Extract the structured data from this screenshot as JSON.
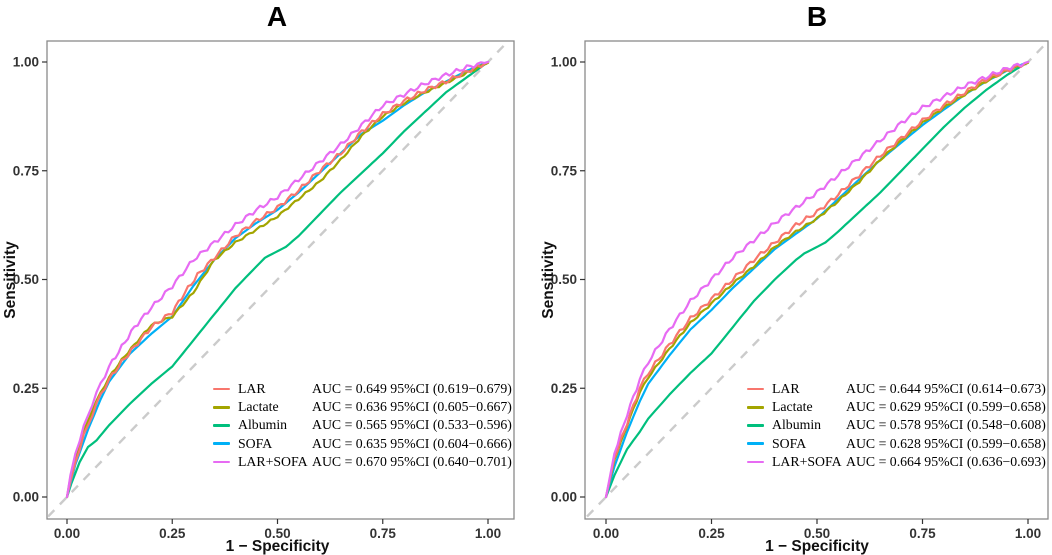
{
  "figure": {
    "background": "#ffffff"
  },
  "chart_data": [
    {
      "type": "line",
      "panel": "A",
      "title": "A",
      "xlabel": "1 − Specificity",
      "ylabel": "Sensitivity",
      "xlim": [
        0,
        1
      ],
      "ylim": [
        0,
        1
      ],
      "x_ticks": [
        "0.00",
        "0.25",
        "0.50",
        "0.75",
        "1.00"
      ],
      "y_ticks": [
        "0.00",
        "0.25",
        "0.50",
        "0.75",
        "1.00"
      ],
      "grid": false,
      "legend_position": "inside-bottom-right",
      "reference_line": {
        "type": "diagonal-chance-line",
        "style": "dashed",
        "color": "#cbcbcb"
      },
      "series": [
        {
          "name": "LAR",
          "color": "#F8766D",
          "auc_label": "AUC = 0.649 95%CI (0.619−0.679)",
          "points": [
            [
              0,
              0
            ],
            [
              0.008,
              0.035
            ],
            [
              0.02,
              0.08
            ],
            [
              0.04,
              0.14
            ],
            [
              0.06,
              0.19
            ],
            [
              0.08,
              0.235
            ],
            [
              0.1,
              0.27
            ],
            [
              0.13,
              0.31
            ],
            [
              0.16,
              0.345
            ],
            [
              0.2,
              0.39
            ],
            [
              0.25,
              0.425
            ],
            [
              0.28,
              0.47
            ],
            [
              0.31,
              0.51
            ],
            [
              0.35,
              0.55
            ],
            [
              0.4,
              0.6
            ],
            [
              0.45,
              0.635
            ],
            [
              0.5,
              0.665
            ],
            [
              0.55,
              0.705
            ],
            [
              0.6,
              0.75
            ],
            [
              0.65,
              0.79
            ],
            [
              0.7,
              0.84
            ],
            [
              0.75,
              0.88
            ],
            [
              0.8,
              0.91
            ],
            [
              0.85,
              0.935
            ],
            [
              0.9,
              0.955
            ],
            [
              0.95,
              0.978
            ],
            [
              1,
              1
            ]
          ]
        },
        {
          "name": "Lactate",
          "color": "#A3A500",
          "auc_label": "AUC = 0.636 95%CI (0.605−0.667)",
          "points": [
            [
              0,
              0
            ],
            [
              0.008,
              0.045
            ],
            [
              0.02,
              0.09
            ],
            [
              0.04,
              0.15
            ],
            [
              0.06,
              0.2
            ],
            [
              0.08,
              0.24
            ],
            [
              0.1,
              0.275
            ],
            [
              0.13,
              0.315
            ],
            [
              0.16,
              0.35
            ],
            [
              0.2,
              0.395
            ],
            [
              0.25,
              0.415
            ],
            [
              0.3,
              0.47
            ],
            [
              0.35,
              0.545
            ],
            [
              0.4,
              0.585
            ],
            [
              0.45,
              0.615
            ],
            [
              0.5,
              0.645
            ],
            [
              0.55,
              0.685
            ],
            [
              0.6,
              0.725
            ],
            [
              0.65,
              0.775
            ],
            [
              0.7,
              0.83
            ],
            [
              0.75,
              0.875
            ],
            [
              0.8,
              0.905
            ],
            [
              0.85,
              0.93
            ],
            [
              0.9,
              0.952
            ],
            [
              0.95,
              0.975
            ],
            [
              1,
              0.998
            ]
          ]
        },
        {
          "name": "Albumin",
          "color": "#00BF7D",
          "auc_label": "AUC = 0.565 95%CI (0.533−0.596)",
          "points": [
            [
              0,
              0
            ],
            [
              0.01,
              0.03
            ],
            [
              0.03,
              0.08
            ],
            [
              0.05,
              0.115
            ],
            [
              0.07,
              0.13
            ],
            [
              0.1,
              0.165
            ],
            [
              0.15,
              0.215
            ],
            [
              0.2,
              0.26
            ],
            [
              0.25,
              0.3
            ],
            [
              0.3,
              0.36
            ],
            [
              0.35,
              0.42
            ],
            [
              0.4,
              0.48
            ],
            [
              0.45,
              0.53
            ],
            [
              0.47,
              0.55
            ],
            [
              0.52,
              0.575
            ],
            [
              0.55,
              0.6
            ],
            [
              0.6,
              0.65
            ],
            [
              0.65,
              0.7
            ],
            [
              0.7,
              0.745
            ],
            [
              0.75,
              0.79
            ],
            [
              0.8,
              0.84
            ],
            [
              0.85,
              0.885
            ],
            [
              0.9,
              0.93
            ],
            [
              0.95,
              0.965
            ],
            [
              1,
              1
            ]
          ]
        },
        {
          "name": "SOFA",
          "color": "#00B0F6",
          "auc_label": "AUC = 0.635 95%CI (0.604−0.666)",
          "points": [
            [
              0,
              0
            ],
            [
              0.02,
              0.075
            ],
            [
              0.05,
              0.155
            ],
            [
              0.08,
              0.225
            ],
            [
              0.1,
              0.265
            ],
            [
              0.15,
              0.33
            ],
            [
              0.2,
              0.375
            ],
            [
              0.25,
              0.415
            ],
            [
              0.3,
              0.485
            ],
            [
              0.35,
              0.545
            ],
            [
              0.4,
              0.595
            ],
            [
              0.45,
              0.63
            ],
            [
              0.5,
              0.66
            ],
            [
              0.55,
              0.7
            ],
            [
              0.6,
              0.745
            ],
            [
              0.65,
              0.79
            ],
            [
              0.7,
              0.835
            ],
            [
              0.75,
              0.865
            ],
            [
              0.8,
              0.9
            ],
            [
              0.85,
              0.93
            ],
            [
              0.9,
              0.955
            ],
            [
              0.95,
              0.98
            ],
            [
              1,
              1
            ]
          ]
        },
        {
          "name": "LAR+SOFA",
          "color": "#E76BF3",
          "auc_label": "AUC = 0.670 95%CI (0.640−0.701)",
          "points": [
            [
              0,
              0
            ],
            [
              0.008,
              0.05
            ],
            [
              0.02,
              0.1
            ],
            [
              0.04,
              0.16
            ],
            [
              0.06,
              0.215
            ],
            [
              0.08,
              0.26
            ],
            [
              0.1,
              0.3
            ],
            [
              0.13,
              0.345
            ],
            [
              0.16,
              0.39
            ],
            [
              0.2,
              0.435
            ],
            [
              0.25,
              0.485
            ],
            [
              0.3,
              0.545
            ],
            [
              0.35,
              0.585
            ],
            [
              0.4,
              0.625
            ],
            [
              0.45,
              0.66
            ],
            [
              0.5,
              0.69
            ],
            [
              0.55,
              0.73
            ],
            [
              0.6,
              0.77
            ],
            [
              0.65,
              0.81
            ],
            [
              0.7,
              0.855
            ],
            [
              0.75,
              0.9
            ],
            [
              0.8,
              0.925
            ],
            [
              0.85,
              0.95
            ],
            [
              0.9,
              0.97
            ],
            [
              0.95,
              0.988
            ],
            [
              1,
              1
            ]
          ]
        }
      ]
    },
    {
      "type": "line",
      "panel": "B",
      "title": "B",
      "xlabel": "1 − Specificity",
      "ylabel": "Sensitivity",
      "xlim": [
        0,
        1
      ],
      "ylim": [
        0,
        1
      ],
      "x_ticks": [
        "0.00",
        "0.25",
        "0.50",
        "0.75",
        "1.00"
      ],
      "y_ticks": [
        "0.00",
        "0.25",
        "0.50",
        "0.75",
        "1.00"
      ],
      "grid": false,
      "legend_position": "inside-bottom-right",
      "reference_line": {
        "type": "diagonal-chance-line",
        "style": "dashed",
        "color": "#cbcbcb"
      },
      "series": [
        {
          "name": "LAR",
          "color": "#F8766D",
          "auc_label": "AUC = 0.644 95%CI (0.614−0.673)",
          "points": [
            [
              0,
              0
            ],
            [
              0.02,
              0.09
            ],
            [
              0.05,
              0.17
            ],
            [
              0.08,
              0.25
            ],
            [
              0.1,
              0.285
            ],
            [
              0.15,
              0.35
            ],
            [
              0.2,
              0.41
            ],
            [
              0.25,
              0.455
            ],
            [
              0.3,
              0.5
            ],
            [
              0.35,
              0.545
            ],
            [
              0.4,
              0.585
            ],
            [
              0.45,
              0.625
            ],
            [
              0.5,
              0.655
            ],
            [
              0.55,
              0.695
            ],
            [
              0.6,
              0.74
            ],
            [
              0.65,
              0.785
            ],
            [
              0.7,
              0.825
            ],
            [
              0.75,
              0.865
            ],
            [
              0.8,
              0.9
            ],
            [
              0.85,
              0.93
            ],
            [
              0.9,
              0.96
            ],
            [
              0.95,
              0.98
            ],
            [
              1,
              1
            ]
          ]
        },
        {
          "name": "Lactate",
          "color": "#A3A500",
          "auc_label": "AUC = 0.629 95%CI (0.599−0.658)",
          "points": [
            [
              0,
              0
            ],
            [
              0.02,
              0.085
            ],
            [
              0.05,
              0.165
            ],
            [
              0.08,
              0.24
            ],
            [
              0.1,
              0.275
            ],
            [
              0.15,
              0.34
            ],
            [
              0.2,
              0.4
            ],
            [
              0.25,
              0.445
            ],
            [
              0.3,
              0.49
            ],
            [
              0.35,
              0.53
            ],
            [
              0.4,
              0.575
            ],
            [
              0.45,
              0.61
            ],
            [
              0.5,
              0.64
            ],
            [
              0.55,
              0.68
            ],
            [
              0.6,
              0.725
            ],
            [
              0.65,
              0.775
            ],
            [
              0.7,
              0.82
            ],
            [
              0.75,
              0.86
            ],
            [
              0.8,
              0.895
            ],
            [
              0.85,
              0.925
            ],
            [
              0.9,
              0.955
            ],
            [
              0.95,
              0.98
            ],
            [
              1,
              0.998
            ]
          ]
        },
        {
          "name": "Albumin",
          "color": "#00BF7D",
          "auc_label": "AUC = 0.578 95%CI (0.548−0.608)",
          "points": [
            [
              0,
              0
            ],
            [
              0.02,
              0.05
            ],
            [
              0.05,
              0.11
            ],
            [
              0.08,
              0.15
            ],
            [
              0.1,
              0.18
            ],
            [
              0.15,
              0.235
            ],
            [
              0.2,
              0.285
            ],
            [
              0.25,
              0.33
            ],
            [
              0.3,
              0.39
            ],
            [
              0.35,
              0.45
            ],
            [
              0.4,
              0.5
            ],
            [
              0.45,
              0.545
            ],
            [
              0.47,
              0.56
            ],
            [
              0.52,
              0.585
            ],
            [
              0.55,
              0.61
            ],
            [
              0.6,
              0.655
            ],
            [
              0.65,
              0.7
            ],
            [
              0.7,
              0.75
            ],
            [
              0.75,
              0.8
            ],
            [
              0.8,
              0.85
            ],
            [
              0.85,
              0.895
            ],
            [
              0.9,
              0.935
            ],
            [
              0.95,
              0.97
            ],
            [
              1,
              1
            ]
          ]
        },
        {
          "name": "SOFA",
          "color": "#00B0F6",
          "auc_label": "AUC = 0.628 95%CI (0.599−0.658)",
          "points": [
            [
              0,
              0
            ],
            [
              0.02,
              0.07
            ],
            [
              0.05,
              0.15
            ],
            [
              0.08,
              0.22
            ],
            [
              0.1,
              0.26
            ],
            [
              0.15,
              0.325
            ],
            [
              0.2,
              0.385
            ],
            [
              0.25,
              0.43
            ],
            [
              0.3,
              0.48
            ],
            [
              0.35,
              0.525
            ],
            [
              0.4,
              0.57
            ],
            [
              0.45,
              0.605
            ],
            [
              0.5,
              0.64
            ],
            [
              0.55,
              0.685
            ],
            [
              0.6,
              0.73
            ],
            [
              0.65,
              0.775
            ],
            [
              0.7,
              0.815
            ],
            [
              0.75,
              0.855
            ],
            [
              0.8,
              0.89
            ],
            [
              0.85,
              0.925
            ],
            [
              0.9,
              0.955
            ],
            [
              0.95,
              0.98
            ],
            [
              1,
              1
            ]
          ]
        },
        {
          "name": "LAR+SOFA",
          "color": "#E76BF3",
          "auc_label": "AUC = 0.664 95%CI (0.636−0.693)",
          "points": [
            [
              0,
              0
            ],
            [
              0.02,
              0.1
            ],
            [
              0.05,
              0.19
            ],
            [
              0.08,
              0.27
            ],
            [
              0.1,
              0.31
            ],
            [
              0.15,
              0.385
            ],
            [
              0.2,
              0.45
            ],
            [
              0.25,
              0.5
            ],
            [
              0.3,
              0.55
            ],
            [
              0.35,
              0.59
            ],
            [
              0.4,
              0.63
            ],
            [
              0.45,
              0.665
            ],
            [
              0.5,
              0.7
            ],
            [
              0.55,
              0.74
            ],
            [
              0.6,
              0.78
            ],
            [
              0.65,
              0.82
            ],
            [
              0.7,
              0.86
            ],
            [
              0.75,
              0.895
            ],
            [
              0.8,
              0.92
            ],
            [
              0.85,
              0.945
            ],
            [
              0.9,
              0.965
            ],
            [
              0.95,
              0.985
            ],
            [
              1,
              1
            ]
          ]
        }
      ]
    }
  ]
}
